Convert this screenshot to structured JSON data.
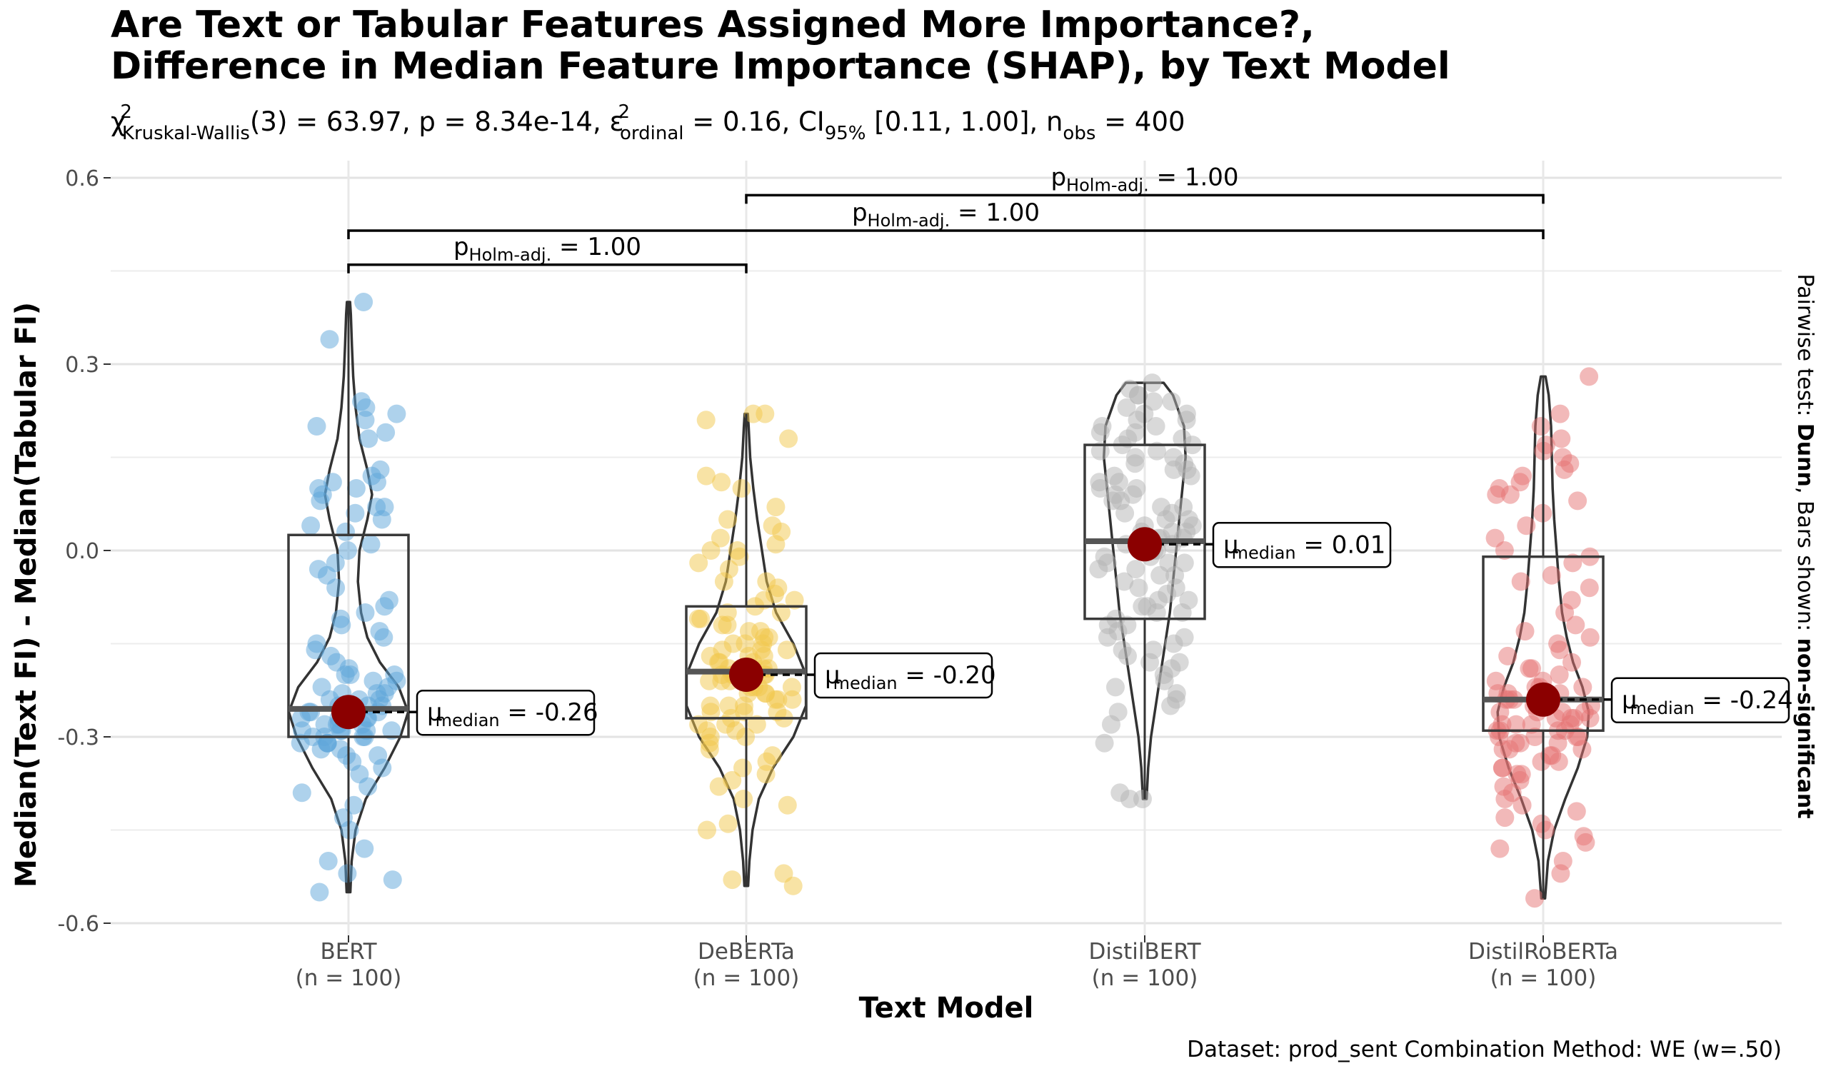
{
  "chart_data": {
    "type": "violin-box-scatter",
    "title": "Are Text or Tabular Features Assigned More Importance?,",
    "title2": "Difference in Median Feature Importance (SHAP), by Text Model",
    "subtitle_parts": {
      "chi": "χ",
      "chi_sup": "2",
      "test_sub": "Kruskal-Wallis",
      "df_stat": "(3) = 63.97, p = 8.34e-14, ",
      "eps": "ε",
      "eps_sup": "2",
      "eps_sub": "ordinal",
      "eps_val": " = 0.16, CI",
      "ci_sub": "95%",
      "ci_val": " [0.11, 1.00], n",
      "n_sub": "obs",
      "n_val": " = 400"
    },
    "xlabel": "Text Model",
    "ylabel": "Median(Text FI) - Median(Tabular FI)",
    "right_label_parts": [
      "Pairwise test: ",
      "Dunn",
      ", Bars shown: ",
      "non-significant"
    ],
    "caption": "Dataset:  prod_sent Combination Method:  WE (w=.50)",
    "ylim": [
      -0.63,
      0.66
    ],
    "yticks": [
      -0.6,
      -0.3,
      0.0,
      0.3,
      0.6
    ],
    "ytick_labels": [
      "-0.6",
      "-0.3",
      "0.0",
      "0.3",
      "0.6"
    ],
    "grid": true,
    "categories": [
      "BERT",
      "DeBERTa",
      "DistilBERT",
      "DistilRoBERTa"
    ],
    "category_counts": [
      "(n = 100)",
      "(n = 100)",
      "(n = 100)",
      "(n = 100)"
    ],
    "colors": [
      "#5DA5DA",
      "#F2C84B",
      "#B3B3B3",
      "#E57373"
    ],
    "median_color": "#8B0000",
    "medians": [
      -0.26,
      -0.2,
      0.01,
      -0.24
    ],
    "median_labels": [
      {
        "sym": "μ",
        "sub": "median",
        "val": " = -0.26"
      },
      {
        "sym": "μ",
        "sub": "median",
        "val": " = -0.20"
      },
      {
        "sym": "μ",
        "sub": "median",
        "val": " = 0.01"
      },
      {
        "sym": "μ",
        "sub": "median",
        "val": " = -0.24"
      }
    ],
    "boxes": [
      {
        "q1": -0.3,
        "median": -0.255,
        "q3": 0.025,
        "min": -0.55,
        "max": 0.4
      },
      {
        "q1": -0.27,
        "median": -0.195,
        "q3": -0.09,
        "min": -0.54,
        "max": 0.22
      },
      {
        "q1": -0.11,
        "median": 0.015,
        "q3": 0.17,
        "min": -0.4,
        "max": 0.27
      },
      {
        "q1": -0.29,
        "median": -0.24,
        "q3": -0.01,
        "min": -0.56,
        "max": 0.28
      }
    ],
    "violins": [
      [
        [
          -0.55,
          0.012
        ],
        [
          -0.5,
          0.02
        ],
        [
          -0.45,
          0.045
        ],
        [
          -0.4,
          0.11
        ],
        [
          -0.35,
          0.23
        ],
        [
          -0.3,
          0.33
        ],
        [
          -0.26,
          0.38
        ],
        [
          -0.22,
          0.32
        ],
        [
          -0.18,
          0.2
        ],
        [
          -0.14,
          0.12
        ],
        [
          -0.1,
          0.08
        ],
        [
          -0.05,
          0.06
        ],
        [
          0.0,
          0.07
        ],
        [
          0.05,
          0.12
        ],
        [
          0.09,
          0.15
        ],
        [
          0.13,
          0.12
        ],
        [
          0.18,
          0.07
        ],
        [
          0.23,
          0.045
        ],
        [
          0.28,
          0.03
        ],
        [
          0.33,
          0.022
        ],
        [
          0.38,
          0.015
        ],
        [
          0.4,
          0.01
        ]
      ],
      [
        [
          -0.54,
          0.012
        ],
        [
          -0.5,
          0.02
        ],
        [
          -0.45,
          0.04
        ],
        [
          -0.4,
          0.08
        ],
        [
          -0.35,
          0.17
        ],
        [
          -0.3,
          0.3
        ],
        [
          -0.25,
          0.38
        ],
        [
          -0.2,
          0.38
        ],
        [
          -0.15,
          0.3
        ],
        [
          -0.1,
          0.19
        ],
        [
          -0.05,
          0.13
        ],
        [
          0.0,
          0.1
        ],
        [
          0.05,
          0.07
        ],
        [
          0.1,
          0.045
        ],
        [
          0.15,
          0.025
        ],
        [
          0.2,
          0.015
        ],
        [
          0.22,
          0.01
        ]
      ],
      [
        [
          -0.4,
          0.012
        ],
        [
          -0.35,
          0.022
        ],
        [
          -0.3,
          0.04
        ],
        [
          -0.25,
          0.07
        ],
        [
          -0.2,
          0.1
        ],
        [
          -0.15,
          0.13
        ],
        [
          -0.1,
          0.16
        ],
        [
          -0.05,
          0.18
        ],
        [
          0.0,
          0.2
        ],
        [
          0.05,
          0.22
        ],
        [
          0.1,
          0.24
        ],
        [
          0.15,
          0.26
        ],
        [
          0.2,
          0.25
        ],
        [
          0.25,
          0.18
        ],
        [
          0.27,
          0.12
        ]
      ],
      [
        [
          -0.56,
          0.012
        ],
        [
          -0.5,
          0.03
        ],
        [
          -0.45,
          0.07
        ],
        [
          -0.4,
          0.14
        ],
        [
          -0.35,
          0.22
        ],
        [
          -0.3,
          0.28
        ],
        [
          -0.26,
          0.29
        ],
        [
          -0.22,
          0.25
        ],
        [
          -0.18,
          0.19
        ],
        [
          -0.14,
          0.15
        ],
        [
          -0.1,
          0.12
        ],
        [
          -0.05,
          0.1
        ],
        [
          0.0,
          0.085
        ],
        [
          0.05,
          0.07
        ],
        [
          0.1,
          0.06
        ],
        [
          0.15,
          0.055
        ],
        [
          0.2,
          0.05
        ],
        [
          0.25,
          0.035
        ],
        [
          0.28,
          0.015
        ]
      ]
    ],
    "brackets": [
      {
        "from": 0,
        "to": 1,
        "y": 0.46,
        "label_p": "p",
        "label_sub": "Holm-adj.",
        "label_val": " = 1.00"
      },
      {
        "from": 0,
        "to": 3,
        "y": 0.515,
        "label_p": "p",
        "label_sub": "Holm-adj.",
        "label_val": " = 1.00"
      },
      {
        "from": 1,
        "to": 3,
        "y": 0.572,
        "label_p": "p",
        "label_sub": "Holm-adj.",
        "label_val": " = 1.00"
      }
    ],
    "points": [
      [
        0.4,
        0.34,
        0.24,
        0.22,
        0.23,
        0.21,
        0.2,
        0.19,
        0.18,
        0.13,
        0.12,
        0.11,
        0.11,
        0.1,
        0.1,
        0.09,
        0.08,
        0.07,
        0.07,
        0.05,
        0.04,
        0.03,
        0.01,
        -0.02,
        -0.04,
        -0.06,
        -0.08,
        -0.09,
        -0.11,
        -0.12,
        -0.13,
        -0.15,
        -0.16,
        -0.17,
        -0.18,
        -0.19,
        -0.2,
        -0.2,
        -0.21,
        -0.22,
        -0.23,
        -0.23,
        -0.24,
        -0.24,
        -0.25,
        -0.25,
        -0.25,
        -0.26,
        -0.26,
        -0.26,
        -0.27,
        -0.27,
        -0.27,
        -0.28,
        -0.28,
        -0.28,
        -0.29,
        -0.29,
        -0.29,
        -0.29,
        -0.3,
        -0.3,
        -0.3,
        -0.31,
        -0.31,
        -0.31,
        -0.32,
        -0.32,
        -0.33,
        -0.33,
        -0.34,
        -0.35,
        -0.36,
        -0.38,
        -0.39,
        -0.41,
        -0.43,
        -0.45,
        -0.48,
        -0.5,
        -0.52,
        -0.53,
        -0.55,
        -0.2,
        -0.22,
        -0.24,
        -0.27,
        -0.28,
        -0.3,
        -0.25,
        -0.26,
        -0.29,
        -0.31,
        -0.23,
        -0.21,
        0.0,
        -0.03,
        0.06,
        -0.1,
        -0.14
      ],
      [
        0.22,
        0.22,
        0.21,
        0.18,
        0.12,
        0.11,
        0.1,
        0.07,
        0.05,
        0.03,
        0.02,
        0.01,
        0.0,
        -0.01,
        -0.02,
        -0.03,
        -0.05,
        -0.06,
        -0.07,
        -0.08,
        -0.09,
        -0.1,
        -0.1,
        -0.11,
        -0.12,
        -0.13,
        -0.13,
        -0.14,
        -0.15,
        -0.15,
        -0.16,
        -0.16,
        -0.17,
        -0.17,
        -0.18,
        -0.18,
        -0.19,
        -0.19,
        -0.19,
        -0.2,
        -0.2,
        -0.2,
        -0.21,
        -0.21,
        -0.21,
        -0.22,
        -0.22,
        -0.23,
        -0.23,
        -0.24,
        -0.24,
        -0.25,
        -0.25,
        -0.26,
        -0.26,
        -0.27,
        -0.27,
        -0.28,
        -0.28,
        -0.29,
        -0.29,
        -0.3,
        -0.31,
        -0.32,
        -0.33,
        -0.34,
        -0.36,
        -0.37,
        -0.38,
        -0.4,
        -0.41,
        -0.44,
        -0.45,
        -0.52,
        -0.53,
        -0.54,
        -0.18,
        -0.2,
        -0.22,
        -0.24,
        -0.16,
        -0.14,
        -0.12,
        -0.26,
        -0.28,
        -0.21,
        -0.19,
        -0.17,
        -0.23,
        -0.08,
        -0.05,
        0.0,
        0.04,
        -0.11,
        -0.25,
        -0.3,
        -0.35,
        -0.15,
        -0.2,
        -0.22
      ],
      [
        0.27,
        0.26,
        0.25,
        0.25,
        0.24,
        0.23,
        0.22,
        0.21,
        0.2,
        0.19,
        0.18,
        0.17,
        0.16,
        0.15,
        0.14,
        0.13,
        0.12,
        0.11,
        0.1,
        0.09,
        0.08,
        0.07,
        0.06,
        0.05,
        0.05,
        0.04,
        0.03,
        0.03,
        0.02,
        0.02,
        0.01,
        0.01,
        0.0,
        0.0,
        -0.01,
        -0.01,
        -0.02,
        -0.02,
        -0.03,
        -0.04,
        -0.05,
        -0.06,
        -0.07,
        -0.08,
        -0.09,
        -0.1,
        -0.11,
        -0.12,
        -0.13,
        -0.14,
        -0.15,
        -0.16,
        -0.17,
        -0.18,
        -0.19,
        -0.2,
        -0.21,
        -0.22,
        -0.23,
        -0.24,
        -0.25,
        -0.26,
        -0.28,
        -0.31,
        -0.39,
        -0.4,
        -0.4,
        0.22,
        0.2,
        0.18,
        0.16,
        0.14,
        0.12,
        0.1,
        0.08,
        0.06,
        0.04,
        0.02,
        0.0,
        -0.02,
        -0.04,
        -0.06,
        -0.08,
        -0.1,
        -0.12,
        -0.14,
        -0.16,
        -0.18,
        0.24,
        0.21,
        0.19,
        0.17,
        0.15,
        0.13,
        0.11,
        0.09,
        0.07,
        0.03,
        -0.03,
        -0.09
      ],
      [
        0.28,
        0.22,
        0.2,
        0.18,
        0.17,
        0.16,
        0.15,
        0.13,
        0.12,
        0.11,
        0.1,
        0.09,
        0.08,
        0.06,
        0.04,
        0.02,
        0.0,
        -0.01,
        -0.02,
        -0.04,
        -0.06,
        -0.08,
        -0.1,
        -0.12,
        -0.14,
        -0.15,
        -0.16,
        -0.17,
        -0.18,
        -0.19,
        -0.2,
        -0.21,
        -0.22,
        -0.22,
        -0.23,
        -0.23,
        -0.24,
        -0.24,
        -0.25,
        -0.25,
        -0.25,
        -0.26,
        -0.26,
        -0.26,
        -0.27,
        -0.27,
        -0.27,
        -0.28,
        -0.28,
        -0.28,
        -0.29,
        -0.29,
        -0.29,
        -0.3,
        -0.3,
        -0.3,
        -0.31,
        -0.31,
        -0.32,
        -0.32,
        -0.33,
        -0.33,
        -0.34,
        -0.35,
        -0.36,
        -0.37,
        -0.38,
        -0.39,
        -0.4,
        -0.41,
        -0.42,
        -0.43,
        -0.44,
        -0.46,
        -0.48,
        -0.5,
        -0.52,
        -0.56,
        -0.21,
        -0.23,
        -0.24,
        -0.26,
        -0.27,
        -0.29,
        -0.31,
        -0.34,
        -0.36,
        0.14,
        0.09,
        -0.05,
        -0.13,
        -0.19,
        -0.22,
        -0.24,
        -0.28,
        -0.3,
        -0.32,
        -0.35,
        -0.45,
        -0.47
      ]
    ]
  }
}
